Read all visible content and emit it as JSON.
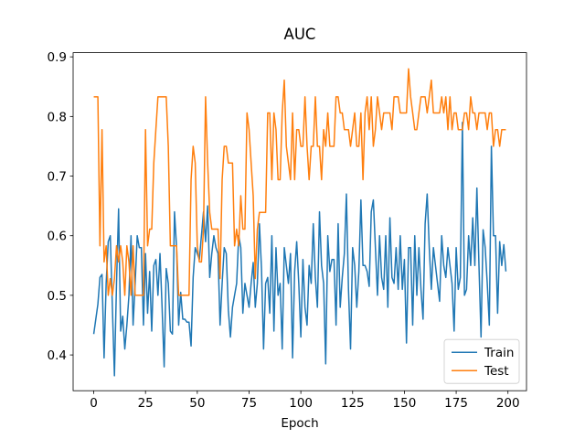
{
  "chart_data": {
    "type": "line",
    "title": "AUC",
    "x_label": "Epoch",
    "xlim": [
      -9.95,
      208.95
    ],
    "xticks": [
      0,
      25,
      50,
      75,
      100,
      125,
      150,
      175,
      200
    ],
    "ylim": [
      0.34,
      0.907
    ],
    "yticks": [
      0.4,
      0.5,
      0.6,
      0.7,
      0.8,
      0.9
    ],
    "legend_position": "lower right",
    "series": [
      {
        "name": "Train",
        "color": "#1f77b4",
        "values": [
          0.435,
          0.46,
          0.485,
          0.53,
          0.535,
          0.395,
          0.52,
          0.59,
          0.6,
          0.48,
          0.365,
          0.52,
          0.645,
          0.44,
          0.465,
          0.41,
          0.45,
          0.5,
          0.6,
          0.45,
          0.52,
          0.6,
          0.58,
          0.58,
          0.45,
          0.57,
          0.47,
          0.54,
          0.44,
          0.55,
          0.56,
          0.5,
          0.57,
          0.48,
          0.38,
          0.545,
          0.52,
          0.44,
          0.435,
          0.64,
          0.58,
          0.45,
          0.505,
          0.46,
          0.46,
          0.455,
          0.455,
          0.415,
          0.53,
          0.58,
          0.57,
          0.56,
          0.6,
          0.64,
          0.59,
          0.65,
          0.53,
          0.57,
          0.6,
          0.58,
          0.57,
          0.45,
          0.52,
          0.58,
          0.57,
          0.475,
          0.43,
          0.48,
          0.5,
          0.52,
          0.6,
          0.58,
          0.47,
          0.52,
          0.5,
          0.48,
          0.52,
          0.555,
          0.48,
          0.52,
          0.62,
          0.545,
          0.41,
          0.52,
          0.53,
          0.47,
          0.6,
          0.44,
          0.58,
          0.5,
          0.52,
          0.41,
          0.58,
          0.55,
          0.52,
          0.57,
          0.395,
          0.54,
          0.59,
          0.52,
          0.43,
          0.56,
          0.48,
          0.45,
          0.55,
          0.52,
          0.62,
          0.53,
          0.48,
          0.64,
          0.55,
          0.52,
          0.385,
          0.6,
          0.54,
          0.56,
          0.56,
          0.45,
          0.62,
          0.48,
          0.53,
          0.57,
          0.67,
          0.51,
          0.41,
          0.58,
          0.55,
          0.48,
          0.54,
          0.66,
          0.55,
          0.55,
          0.54,
          0.515,
          0.64,
          0.66,
          0.58,
          0.5,
          0.6,
          0.53,
          0.51,
          0.6,
          0.48,
          0.63,
          0.53,
          0.52,
          0.58,
          0.51,
          0.6,
          0.51,
          0.56,
          0.42,
          0.58,
          0.58,
          0.45,
          0.6,
          0.5,
          0.58,
          0.51,
          0.46,
          0.62,
          0.67,
          0.58,
          0.51,
          0.58,
          0.55,
          0.52,
          0.49,
          0.6,
          0.55,
          0.53,
          0.58,
          0.55,
          0.52,
          0.44,
          0.58,
          0.51,
          0.53,
          0.79,
          0.5,
          0.51,
          0.6,
          0.55,
          0.63,
          0.55,
          0.68,
          0.55,
          0.43,
          0.61,
          0.58,
          0.52,
          0.45,
          0.75,
          0.6,
          0.6,
          0.47,
          0.59,
          0.55,
          0.585,
          0.54
        ]
      },
      {
        "name": "Test",
        "color": "#ff7f0e",
        "values": [
          0.833,
          0.833,
          0.833,
          0.583,
          0.778,
          0.556,
          0.583,
          0.5,
          0.528,
          0.5,
          0.528,
          0.583,
          0.556,
          0.583,
          0.556,
          0.5,
          0.583,
          0.556,
          0.5,
          0.583,
          0.5,
          0.5,
          0.5,
          0.5,
          0.5,
          0.778,
          0.583,
          0.611,
          0.611,
          0.722,
          0.778,
          0.833,
          0.833,
          0.833,
          0.833,
          0.833,
          0.75,
          0.583,
          0.583,
          0.583,
          0.583,
          0.5,
          0.5,
          0.5,
          0.5,
          0.5,
          0.5,
          0.694,
          0.75,
          0.722,
          0.583,
          0.556,
          0.556,
          0.611,
          0.833,
          0.722,
          0.639,
          0.611,
          0.611,
          0.611,
          0.611,
          0.528,
          0.694,
          0.75,
          0.75,
          0.722,
          0.722,
          0.722,
          0.583,
          0.611,
          0.583,
          0.667,
          0.611,
          0.611,
          0.806,
          0.778,
          0.722,
          0.667,
          0.528,
          0.611,
          0.639,
          0.639,
          0.639,
          0.639,
          0.806,
          0.806,
          0.694,
          0.806,
          0.778,
          0.694,
          0.694,
          0.806,
          0.861,
          0.75,
          0.722,
          0.694,
          0.806,
          0.694,
          0.778,
          0.778,
          0.75,
          0.75,
          0.833,
          0.75,
          0.694,
          0.75,
          0.75,
          0.833,
          0.75,
          0.75,
          0.694,
          0.778,
          0.75,
          0.806,
          0.75,
          0.75,
          0.75,
          0.833,
          0.833,
          0.806,
          0.806,
          0.778,
          0.778,
          0.778,
          0.75,
          0.778,
          0.806,
          0.75,
          0.75,
          0.806,
          0.694,
          0.806,
          0.833,
          0.778,
          0.833,
          0.75,
          0.778,
          0.833,
          0.806,
          0.778,
          0.806,
          0.806,
          0.806,
          0.806,
          0.778,
          0.833,
          0.833,
          0.833,
          0.806,
          0.806,
          0.806,
          0.806,
          0.88,
          0.833,
          0.806,
          0.778,
          0.778,
          0.806,
          0.833,
          0.833,
          0.833,
          0.806,
          0.833,
          0.861,
          0.806,
          0.806,
          0.806,
          0.806,
          0.833,
          0.806,
          0.833,
          0.778,
          0.833,
          0.778,
          0.806,
          0.806,
          0.778,
          0.778,
          0.778,
          0.806,
          0.806,
          0.778,
          0.833,
          0.806,
          0.806,
          0.778,
          0.806,
          0.806,
          0.806,
          0.806,
          0.778,
          0.806,
          0.806,
          0.75,
          0.778,
          0.778,
          0.75,
          0.778,
          0.778,
          0.778
        ]
      }
    ]
  }
}
